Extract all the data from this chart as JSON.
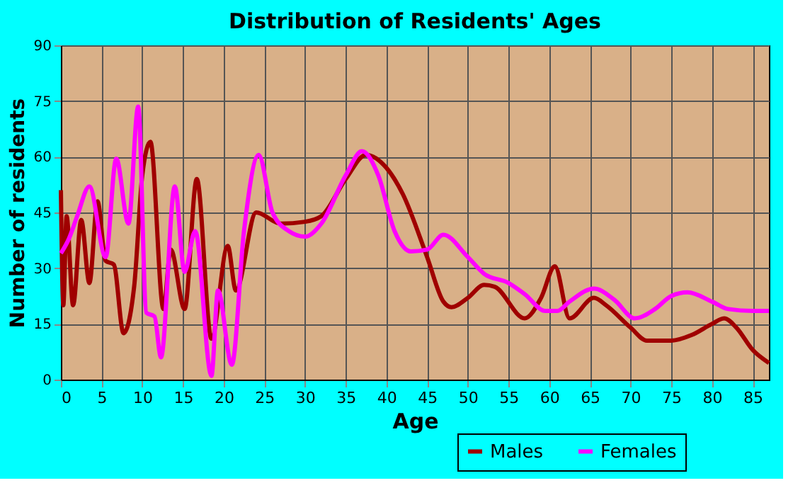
{
  "chart_data": {
    "type": "line",
    "title": "Distribution of Residents' Ages",
    "xlabel": "Age",
    "ylabel": "Number of residents",
    "xlim": [
      0,
      87
    ],
    "xticks": [
      0,
      5,
      10,
      15,
      20,
      25,
      30,
      35,
      40,
      45,
      50,
      55,
      60,
      65,
      70,
      75,
      80,
      85
    ],
    "ylim": [
      0,
      90
    ],
    "yticks": [
      0,
      15,
      30,
      45,
      60,
      75,
      90
    ],
    "grid": true,
    "legend": "bottom right",
    "marker": "none",
    "line_style": "solid",
    "series": [
      {
        "name": "Males",
        "color": "#a00000",
        "x": [
          0,
          0.3,
          0.7,
          1.5,
          2.5,
          3.5,
          4.5,
          5.5,
          6.5,
          7.7,
          9,
          10,
          11,
          12.6,
          13.5,
          15.2,
          16.7,
          18.5,
          20.5,
          21.5,
          24,
          27,
          30,
          32,
          35,
          37.5,
          40,
          42,
          45,
          47,
          48,
          50,
          52,
          53.3,
          57,
          59,
          60.7,
          62.5,
          65.5,
          67,
          70,
          72,
          75,
          77.5,
          80,
          81.5,
          83,
          85,
          87
        ],
        "values": [
          51,
          20,
          44,
          20,
          43,
          26,
          48,
          32,
          31,
          12.5,
          25,
          55,
          64,
          19,
          35,
          19,
          54,
          11,
          36,
          24,
          45,
          42,
          42.5,
          44,
          54,
          60.5,
          57,
          50,
          33,
          21,
          19.5,
          22,
          25.5,
          25,
          16.5,
          22,
          30.5,
          16.5,
          22,
          20,
          14,
          10.5,
          10.5,
          12,
          15,
          16.5,
          14,
          8,
          4.5
        ]
      },
      {
        "name": "Females",
        "color": "#ff00ff",
        "x": [
          0,
          1,
          2,
          3.5,
          5.5,
          6.8,
          8.3,
          9.5,
          10.5,
          11.5,
          12.3,
          14,
          15.2,
          16.5,
          18.5,
          19.3,
          21,
          22.5,
          24.3,
          26,
          28,
          30,
          32,
          35,
          37,
          39,
          41,
          43,
          45,
          47,
          50,
          52,
          55,
          57,
          59.5,
          61,
          62.5,
          65.5,
          68,
          70.5,
          73,
          75,
          77,
          80,
          82,
          85,
          87
        ],
        "values": [
          34,
          38,
          44,
          52,
          33,
          59.5,
          42,
          73.5,
          18,
          17,
          6,
          52,
          29,
          40,
          1,
          24,
          4,
          40,
          60.5,
          45,
          40,
          38.5,
          42,
          55,
          61.5,
          55,
          40,
          34.5,
          35,
          39,
          33,
          28.5,
          26,
          23,
          18.5,
          18.5,
          21,
          24.5,
          21.5,
          16.5,
          19,
          22.5,
          23.5,
          21,
          19,
          18.5,
          18.5
        ]
      }
    ]
  }
}
